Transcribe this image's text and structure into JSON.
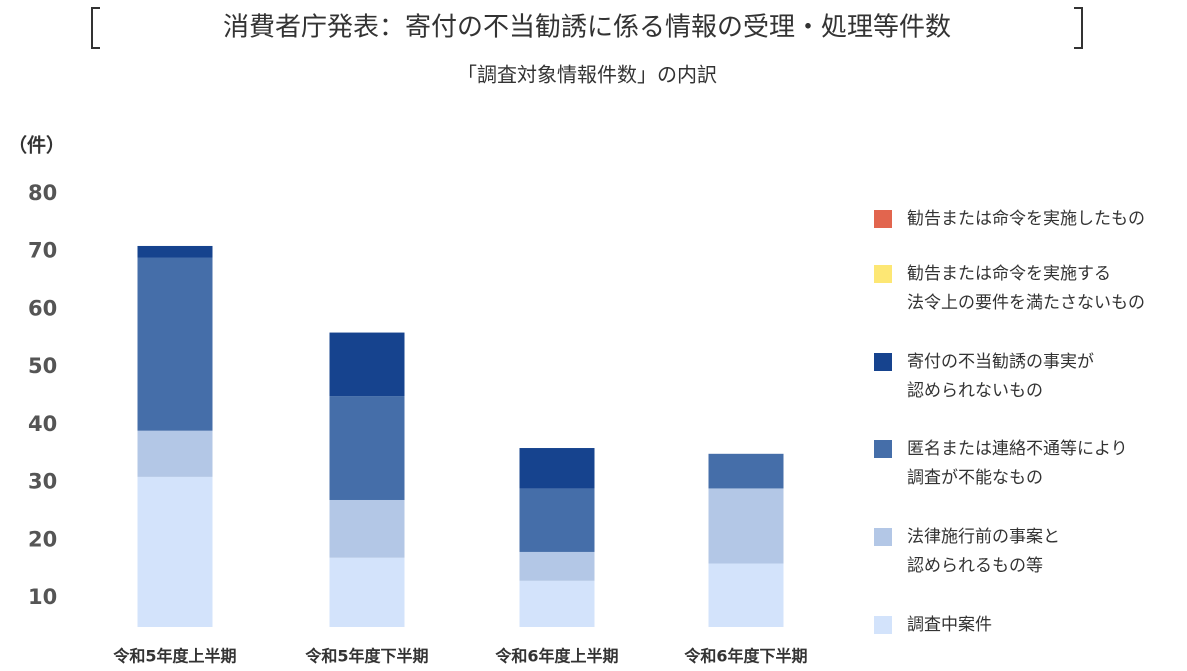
{
  "chart_data": {
    "type": "stacked-bar",
    "title": "消費者庁発表：寄付の不当勧誘に係る情報の受理・処理等件数",
    "subtitle": "「調査対象情報件数」の内訳",
    "y_label": "（件）",
    "categories": [
      "令和5年度上半期",
      "令和5年度下半期",
      "令和6年度上半期",
      "令和6年度下半期"
    ],
    "series": [
      {
        "name": "調査中案件",
        "color": "#d3e3fb",
        "values": [
          31,
          17,
          13,
          16
        ]
      },
      {
        "name": "法律施行前の事案と\n認められるもの等",
        "color": "#b3c7e6",
        "values": [
          8,
          10,
          5,
          13
        ]
      },
      {
        "name": "匿名または連絡不通等により\n調査が不能なもの",
        "color": "#456ea9",
        "values": [
          30,
          18,
          11,
          6
        ]
      },
      {
        "name": "寄付の不当勧誘の事実が\n認められないもの",
        "color": "#16438e",
        "values": [
          2,
          11,
          7,
          0
        ]
      },
      {
        "name": "勧告または命令を実施する\n法令上の要件を満たさないもの",
        "color": "#fde774",
        "values": [
          0,
          0,
          0,
          0
        ]
      },
      {
        "name": "勧告または命令を実施したもの",
        "color": "#e2654e",
        "values": [
          0,
          0,
          0,
          0
        ]
      }
    ],
    "ylim": [
      5,
      80
    ],
    "yticks": [
      10,
      20,
      30,
      40,
      50,
      60,
      70,
      80
    ],
    "legend": "right"
  }
}
